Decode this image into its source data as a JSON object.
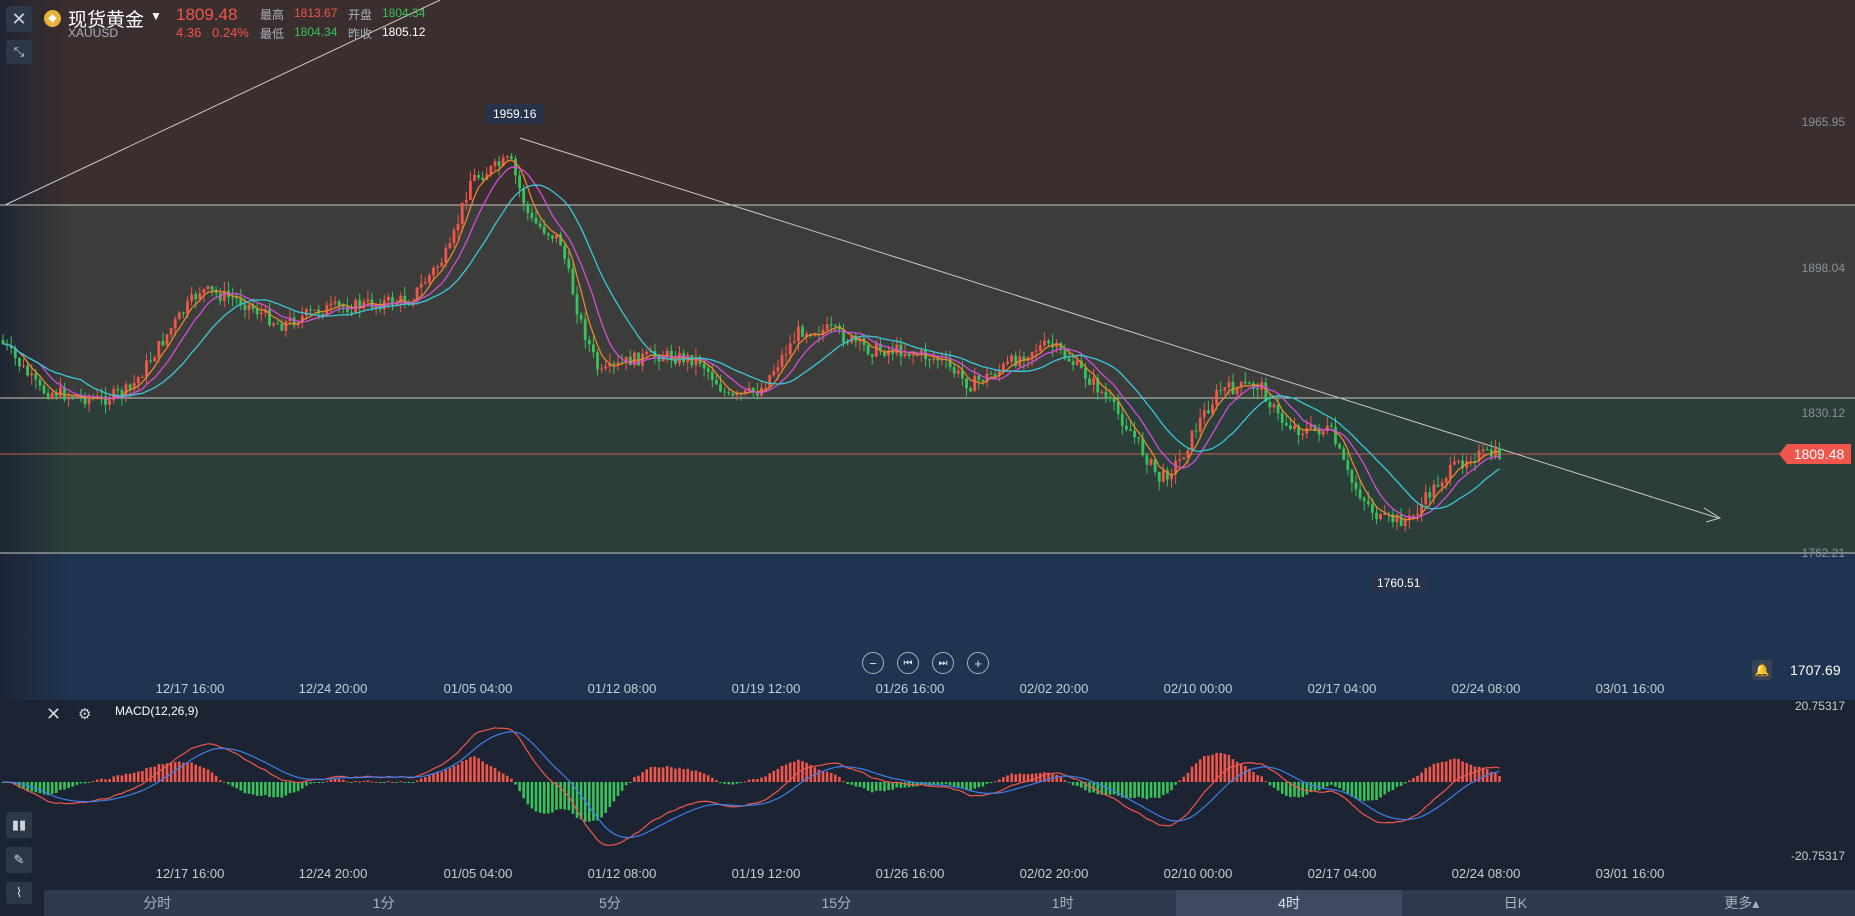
{
  "header": {
    "symbol_name": "现货黄金",
    "symbol_code": "XAUUSD",
    "last_price": "1809.48",
    "change": "4.36",
    "change_pct": "0.24%",
    "high_label": "最高",
    "high_value": "1813.67",
    "open_label": "开盘",
    "open_value": "1804.34",
    "low_label": "最低",
    "low_value": "1804.34",
    "prev_close_label": "昨收",
    "prev_close_value": "1805.12"
  },
  "chart": {
    "y_ticks": [
      "1965.95",
      "1898.04",
      "1830.12",
      "1762.21"
    ],
    "current_price_tag": "1809.48",
    "lowest_visible": "1707.69",
    "annotation_high": "1959.16",
    "annotation_low": "1760.51",
    "x_ticks": [
      "12/17 16:00",
      "12/24 20:00",
      "01/05 04:00",
      "01/12 08:00",
      "01/19 12:00",
      "01/26 16:00",
      "02/02 20:00",
      "02/10 00:00",
      "02/17 04:00",
      "02/24 08:00",
      "03/01 16:00"
    ]
  },
  "macd": {
    "label": "MACD(12,26,9)",
    "y_top": "20.75317",
    "y_bottom": "-20.75317",
    "x_ticks": [
      "12/17 16:00",
      "12/24 20:00",
      "01/05 04:00",
      "01/12 08:00",
      "01/19 12:00",
      "01/26 16:00",
      "02/02 20:00",
      "02/10 00:00",
      "02/17 04:00",
      "02/24 08:00",
      "03/01 16:00"
    ]
  },
  "icons": {
    "close": "close-icon",
    "collapse": "collapse-icon",
    "zoom_out": "zoom-out-icon",
    "step_back": "step-back-icon",
    "step_forward": "step-forward-icon",
    "zoom_in": "zoom-in-icon",
    "bell": "bell-icon",
    "gear": "gear-icon"
  },
  "tabs": [
    {
      "label": "分时",
      "active": false
    },
    {
      "label": "1分",
      "active": false
    },
    {
      "label": "5分",
      "active": false
    },
    {
      "label": "15分",
      "active": false
    },
    {
      "label": "1时",
      "active": false
    },
    {
      "label": "4时",
      "active": true
    },
    {
      "label": "日K",
      "active": false
    },
    {
      "label": "更多▴",
      "active": false
    }
  ],
  "colors": {
    "up": "#f0564b",
    "down": "#38c25a",
    "ma_fast": "#e8862f",
    "ma_mid": "#d04fd6",
    "ma_slow": "#3bc7d6"
  }
}
